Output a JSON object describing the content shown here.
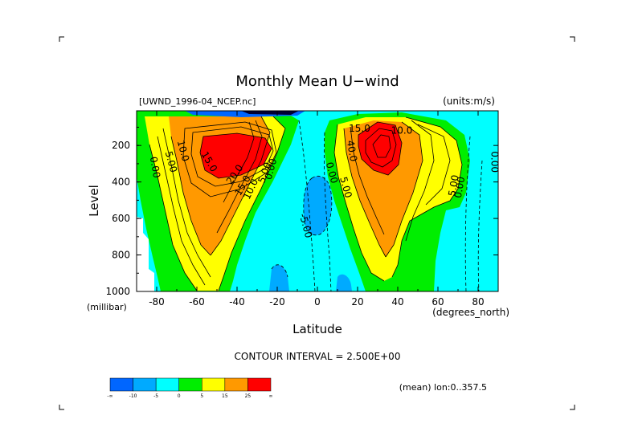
{
  "chart_data": {
    "type": "heatmap",
    "title": "Monthly Mean U−wind",
    "dataset": "[UWND_1996-04_NCEP.nc]",
    "units": "(units:m/s)",
    "xlabel": "Latitude",
    "xunits": "(degrees_north)",
    "ylabel": "Level",
    "yunits": "(millibar)",
    "xlim": [
      -90,
      90
    ],
    "ylim": [
      1000,
      10
    ],
    "y_inverted": true,
    "x_ticks": [
      -80,
      -60,
      -40,
      -20,
      0,
      20,
      40,
      60,
      80
    ],
    "y_ticks": [
      200,
      400,
      600,
      800,
      1000
    ],
    "contour_interval_text": "CONTOUR INTERVAL = 2.500E+00",
    "mean_text": "(mean) lon:0..357.5",
    "contour_labels": [
      {
        "text": "10.0",
        "lat": -67,
        "lev": 230,
        "rot": 75
      },
      {
        "text": "5.00",
        "lat": -73,
        "lev": 290,
        "rot": 75
      },
      {
        "text": "0.00",
        "lat": -81,
        "lev": 320,
        "rot": 80
      },
      {
        "text": "15.0",
        "lat": -54,
        "lev": 290,
        "rot": 60
      },
      {
        "text": "20.0",
        "lat": -41,
        "lev": 360,
        "rot": -55
      },
      {
        "text": "15.0",
        "lat": -37,
        "lev": 420,
        "rot": -60
      },
      {
        "text": "10.0",
        "lat": -33,
        "lev": 440,
        "rot": -65
      },
      {
        "text": "5.00",
        "lat": -26,
        "lev": 350,
        "rot": -70
      },
      {
        "text": "0.00",
        "lat": -23,
        "lev": 330,
        "rot": -75
      },
      {
        "text": "-5.00",
        "lat": -6,
        "lev": 640,
        "rot": 75
      },
      {
        "text": "0.00",
        "lat": 7,
        "lev": 350,
        "rot": 75
      },
      {
        "text": "5.00",
        "lat": 14,
        "lev": 430,
        "rot": 75
      },
      {
        "text": "40.0",
        "lat": 17,
        "lev": 230,
        "rot": 80
      },
      {
        "text": "15.0",
        "lat": 21,
        "lev": 110,
        "rot": 0
      },
      {
        "text": "10.0",
        "lat": 42,
        "lev": 120,
        "rot": 0
      },
      {
        "text": "5.00",
        "lat": 68,
        "lev": 420,
        "rot": -80
      },
      {
        "text": "0.00",
        "lat": 71,
        "lev": 430,
        "rot": -80
      },
      {
        "text": "0.00",
        "lat": 88,
        "lev": 290,
        "rot": 90
      }
    ],
    "colorbar": {
      "ticks": [
        "-∞",
        "-10",
        "-5",
        "0",
        "5",
        "15",
        "25",
        "∞"
      ],
      "colors": [
        "#0066ff",
        "#00aaff",
        "#00ffff",
        "#00ee00",
        "#ffff00",
        "#ff9900",
        "#ff0000"
      ]
    },
    "fill_colors": {
      "neg10": "#0066ff",
      "neg5": "#00aaff",
      "neg": "#00ffff",
      "pos0": "#00ee00",
      "pos5": "#ffff00",
      "pos15": "#ff9900",
      "pos25": "#ff0000"
    }
  }
}
